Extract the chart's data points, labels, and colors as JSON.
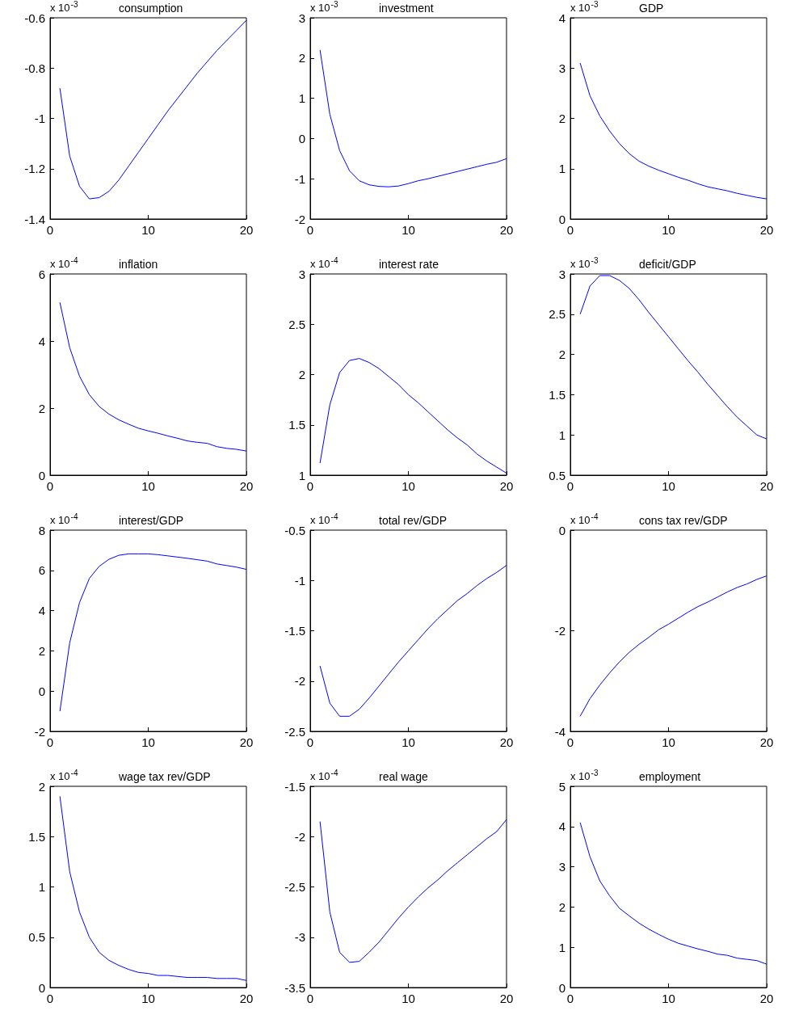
{
  "chart_data": [
    {
      "type": "line",
      "title": "consumption",
      "annotations": [
        "x 10$^{-3}$"
      ],
      "color": "#0000ff",
      "x": [
        1,
        2,
        3,
        4,
        5,
        6,
        7,
        8,
        9,
        10,
        11,
        12,
        13,
        14,
        15,
        16,
        17,
        18,
        19,
        20
      ],
      "values": [
        -0.88,
        -1.15,
        -1.27,
        -1.32,
        -1.315,
        -1.29,
        -1.245,
        -1.19,
        -1.135,
        -1.08,
        -1.025,
        -0.97,
        -0.92,
        -0.87,
        -0.82,
        -0.775,
        -0.73,
        -0.69,
        -0.65,
        -0.61
      ],
      "xlim": [
        0,
        20
      ],
      "xticks": [
        0,
        10,
        20
      ],
      "ylim": [
        -1.4,
        -0.6
      ],
      "yticks": [
        -1.4,
        -1.2,
        -1,
        -0.8,
        -0.6
      ]
    },
    {
      "type": "line",
      "title": "investment",
      "annotations": [
        "x 10$^{-3}$"
      ],
      "color": "#0000ff",
      "x": [
        1,
        2,
        3,
        4,
        5,
        6,
        7,
        8,
        9,
        10,
        11,
        12,
        13,
        14,
        15,
        16,
        17,
        18,
        19,
        20
      ],
      "values": [
        2.2,
        0.6,
        -0.3,
        -0.8,
        -1.05,
        -1.15,
        -1.19,
        -1.2,
        -1.18,
        -1.12,
        -1.05,
        -1.0,
        -0.94,
        -0.88,
        -0.82,
        -0.76,
        -0.7,
        -0.64,
        -0.59,
        -0.5
      ],
      "xlim": [
        0,
        20
      ],
      "xticks": [
        0,
        10,
        20
      ],
      "ylim": [
        -2,
        3
      ],
      "yticks": [
        -2,
        -1,
        0,
        1,
        2,
        3
      ]
    },
    {
      "type": "line",
      "title": "GDP",
      "annotations": [
        "x 10$^{-3}$"
      ],
      "color": "#0000ff",
      "x": [
        1,
        2,
        3,
        4,
        5,
        6,
        7,
        8,
        9,
        10,
        11,
        12,
        13,
        14,
        15,
        16,
        17,
        18,
        19,
        20
      ],
      "values": [
        3.1,
        2.45,
        2.05,
        1.75,
        1.5,
        1.3,
        1.15,
        1.05,
        0.97,
        0.9,
        0.83,
        0.77,
        0.7,
        0.64,
        0.6,
        0.56,
        0.51,
        0.47,
        0.43,
        0.4
      ],
      "xlim": [
        0,
        20
      ],
      "xticks": [
        0,
        10,
        20
      ],
      "ylim": [
        0,
        4
      ],
      "yticks": [
        0,
        1,
        2,
        3,
        4
      ]
    },
    {
      "type": "line",
      "title": "inflation",
      "annotations": [
        "x 10$^{-4}$"
      ],
      "color": "#0000ff",
      "x": [
        1,
        2,
        3,
        4,
        5,
        6,
        7,
        8,
        9,
        10,
        11,
        12,
        13,
        14,
        15,
        16,
        17,
        18,
        19,
        20
      ],
      "values": [
        5.15,
        3.8,
        2.95,
        2.4,
        2.05,
        1.82,
        1.65,
        1.52,
        1.4,
        1.32,
        1.25,
        1.17,
        1.1,
        1.02,
        0.98,
        0.95,
        0.85,
        0.8,
        0.77,
        0.72
      ],
      "xlim": [
        0,
        20
      ],
      "xticks": [
        0,
        10,
        20
      ],
      "ylim": [
        0,
        6
      ],
      "yticks": [
        0,
        2,
        4,
        6
      ]
    },
    {
      "type": "line",
      "title": "interest rate",
      "annotations": [
        "x 10$^{-4}$"
      ],
      "color": "#0000ff",
      "x": [
        1,
        2,
        3,
        4,
        5,
        6,
        7,
        8,
        9,
        10,
        11,
        12,
        13,
        14,
        15,
        16,
        17,
        18,
        19,
        20
      ],
      "values": [
        1.12,
        1.7,
        2.02,
        2.14,
        2.16,
        2.12,
        2.06,
        1.98,
        1.9,
        1.8,
        1.72,
        1.63,
        1.54,
        1.45,
        1.37,
        1.3,
        1.21,
        1.14,
        1.08,
        1.02
      ],
      "xlim": [
        0,
        20
      ],
      "xticks": [
        0,
        10,
        20
      ],
      "ylim": [
        1,
        3
      ],
      "yticks": [
        1,
        1.5,
        2,
        2.5,
        3
      ]
    },
    {
      "type": "line",
      "title": "deficit/GDP",
      "annotations": [
        "x 10$^{-3}$"
      ],
      "color": "#0000ff",
      "x": [
        1,
        2,
        3,
        4,
        5,
        6,
        7,
        8,
        9,
        10,
        11,
        12,
        13,
        14,
        15,
        16,
        17,
        18,
        19,
        20
      ],
      "values": [
        2.5,
        2.85,
        2.98,
        2.98,
        2.92,
        2.82,
        2.68,
        2.52,
        2.37,
        2.22,
        2.07,
        1.92,
        1.78,
        1.63,
        1.49,
        1.35,
        1.22,
        1.11,
        1.0,
        0.95
      ],
      "xlim": [
        0,
        20
      ],
      "xticks": [
        0,
        10,
        20
      ],
      "ylim": [
        0.5,
        3
      ],
      "yticks": [
        0.5,
        1,
        1.5,
        2,
        2.5,
        3
      ]
    },
    {
      "type": "line",
      "title": "interest/GDP",
      "annotations": [
        "x 10$^{-4}$"
      ],
      "color": "#0000ff",
      "x": [
        1,
        2,
        3,
        4,
        5,
        6,
        7,
        8,
        9,
        10,
        11,
        12,
        13,
        14,
        15,
        16,
        17,
        18,
        19,
        20
      ],
      "values": [
        -1.0,
        2.4,
        4.4,
        5.6,
        6.2,
        6.55,
        6.75,
        6.82,
        6.82,
        6.82,
        6.78,
        6.72,
        6.66,
        6.6,
        6.53,
        6.46,
        6.32,
        6.24,
        6.16,
        6.05
      ],
      "xlim": [
        0,
        20
      ],
      "xticks": [
        0,
        10,
        20
      ],
      "ylim": [
        -2,
        8
      ],
      "yticks": [
        -2,
        0,
        2,
        4,
        6,
        8
      ]
    },
    {
      "type": "line",
      "title": "total rev/GDP",
      "annotations": [
        "x 10$^{-4}$"
      ],
      "color": "#0000ff",
      "x": [
        1,
        2,
        3,
        4,
        5,
        6,
        7,
        8,
        9,
        10,
        11,
        12,
        13,
        14,
        15,
        16,
        17,
        18,
        19,
        20
      ],
      "values": [
        -1.85,
        -2.22,
        -2.35,
        -2.35,
        -2.28,
        -2.17,
        -2.05,
        -1.93,
        -1.81,
        -1.7,
        -1.59,
        -1.48,
        -1.38,
        -1.29,
        -1.2,
        -1.13,
        -1.05,
        -0.98,
        -0.92,
        -0.85
      ],
      "xlim": [
        0,
        20
      ],
      "xticks": [
        0,
        10,
        20
      ],
      "ylim": [
        -2.5,
        -0.5
      ],
      "yticks": [
        -2.5,
        -2,
        -1.5,
        -1,
        -0.5
      ]
    },
    {
      "type": "line",
      "title": "cons tax rev/GDP",
      "annotations": [
        "x 10$^{-4}$"
      ],
      "color": "#0000ff",
      "x": [
        1,
        2,
        3,
        4,
        5,
        6,
        7,
        8,
        9,
        10,
        11,
        12,
        13,
        14,
        15,
        16,
        17,
        18,
        19,
        20
      ],
      "values": [
        -3.7,
        -3.35,
        -3.08,
        -2.84,
        -2.62,
        -2.43,
        -2.27,
        -2.13,
        -1.98,
        -1.87,
        -1.75,
        -1.63,
        -1.52,
        -1.43,
        -1.33,
        -1.23,
        -1.14,
        -1.07,
        -0.98,
        -0.91
      ],
      "xlim": [
        0,
        20
      ],
      "xticks": [
        0,
        10,
        20
      ],
      "ylim": [
        -4,
        0
      ],
      "yticks": [
        -4,
        -2,
        0
      ]
    },
    {
      "type": "line",
      "title": "wage tax rev/GDP",
      "annotations": [
        "x 10$^{-4}$"
      ],
      "color": "#0000ff",
      "x": [
        1,
        2,
        3,
        4,
        5,
        6,
        7,
        8,
        9,
        10,
        11,
        12,
        13,
        14,
        15,
        16,
        17,
        18,
        19,
        20
      ],
      "values": [
        1.9,
        1.15,
        0.75,
        0.5,
        0.35,
        0.27,
        0.22,
        0.18,
        0.15,
        0.14,
        0.12,
        0.12,
        0.11,
        0.1,
        0.1,
        0.1,
        0.09,
        0.09,
        0.09,
        0.07
      ],
      "xlim": [
        0,
        20
      ],
      "xticks": [
        0,
        10,
        20
      ],
      "ylim": [
        0,
        2
      ],
      "yticks": [
        0,
        0.5,
        1,
        1.5,
        2
      ]
    },
    {
      "type": "line",
      "title": "real wage",
      "annotations": [
        "x 10$^{-4}$"
      ],
      "color": "#0000ff",
      "x": [
        1,
        2,
        3,
        4,
        5,
        6,
        7,
        8,
        9,
        10,
        11,
        12,
        13,
        14,
        15,
        16,
        17,
        18,
        19,
        20
      ],
      "values": [
        -1.85,
        -2.75,
        -3.15,
        -3.25,
        -3.24,
        -3.15,
        -3.05,
        -2.93,
        -2.81,
        -2.7,
        -2.6,
        -2.51,
        -2.43,
        -2.34,
        -2.26,
        -2.18,
        -2.1,
        -2.02,
        -1.95,
        -1.83
      ],
      "xlim": [
        0,
        20
      ],
      "xticks": [
        0,
        10,
        20
      ],
      "ylim": [
        -3.5,
        -1.5
      ],
      "yticks": [
        -3.5,
        -3,
        -2.5,
        -2,
        -1.5
      ]
    },
    {
      "type": "line",
      "title": "employment",
      "annotations": [
        "x 10$^{-3}$"
      ],
      "color": "#0000ff",
      "x": [
        1,
        2,
        3,
        4,
        5,
        6,
        7,
        8,
        9,
        10,
        11,
        12,
        13,
        14,
        15,
        16,
        17,
        18,
        19,
        20
      ],
      "values": [
        4.1,
        3.25,
        2.65,
        2.28,
        1.97,
        1.78,
        1.6,
        1.45,
        1.32,
        1.2,
        1.1,
        1.03,
        0.96,
        0.9,
        0.83,
        0.8,
        0.73,
        0.7,
        0.67,
        0.58
      ],
      "xlim": [
        0,
        20
      ],
      "xticks": [
        0,
        10,
        20
      ],
      "ylim": [
        0,
        5
      ],
      "yticks": [
        0,
        1,
        2,
        3,
        4,
        5
      ]
    }
  ]
}
